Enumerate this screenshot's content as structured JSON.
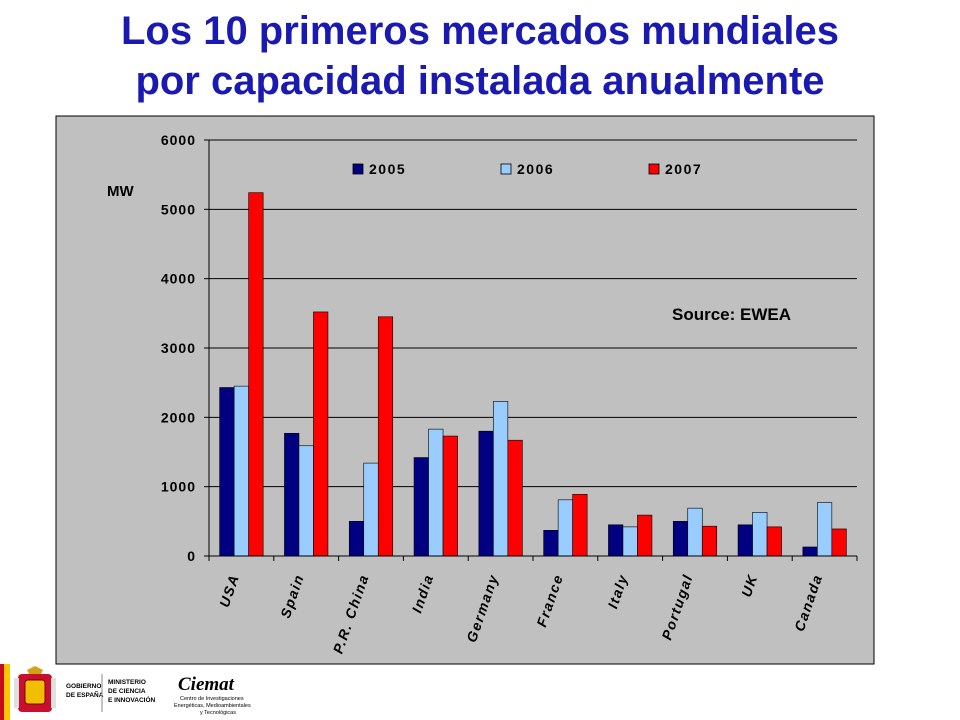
{
  "title": {
    "line1": "Los 10 primeros mercados mundiales",
    "line2": "por capacidad instalada anualmente"
  },
  "chart_data": {
    "type": "bar",
    "categories": [
      "USA",
      "Spain",
      "P.R. China",
      "India",
      "Germany",
      "France",
      "Italy",
      "Portugal",
      "UK",
      "Canada"
    ],
    "series": [
      {
        "name": "2005",
        "color": "#000080",
        "values": [
          2430,
          1770,
          500,
          1420,
          1800,
          370,
          450,
          500,
          450,
          130
        ]
      },
      {
        "name": "2006",
        "color": "#99CCFF",
        "values": [
          2450,
          1590,
          1340,
          1830,
          2230,
          810,
          420,
          690,
          630,
          770
        ]
      },
      {
        "name": "2007",
        "color": "#FF0000",
        "values": [
          5240,
          3520,
          3450,
          1730,
          1670,
          890,
          590,
          430,
          420,
          390
        ]
      }
    ],
    "yticks": [
      0,
      1000,
      2000,
      3000,
      4000,
      5000,
      6000
    ],
    "ylim": [
      0,
      6000
    ],
    "ylabel": "MW",
    "xlabel": "",
    "annotation": "Source: EWEA",
    "grid": true,
    "legend": "top",
    "plot_background": "#C0C0C0"
  },
  "logos": {
    "gov_line1": "GOBIERNO",
    "gov_line2": "DE ESPAÑA",
    "min_line1": "MINISTERIO",
    "min_line2": "DE CIENCIA",
    "min_line3": "E INNOVACIÓN",
    "ciemat_name": "Ciemat",
    "ciemat_line1": "Centro de Investigaciones",
    "ciemat_line2": "Energéticas, Medioambientales",
    "ciemat_line3": "y Tecnológicas"
  }
}
